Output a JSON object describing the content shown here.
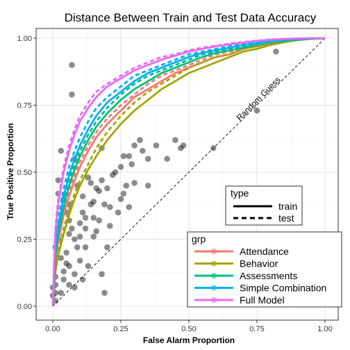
{
  "chart_data": {
    "type": "line",
    "title": "Distance Between Train and Test Data Accuracy",
    "xlabel": "False Alarm Proportion",
    "ylabel": "True Positive Proportion",
    "xlim": [
      0,
      1
    ],
    "ylim": [
      0,
      1
    ],
    "x_ticks": [
      "0.00",
      "0.25",
      "0.50",
      "0.75",
      "1.00"
    ],
    "y_ticks": [
      "0.00",
      "0.25",
      "0.50",
      "0.75",
      "1.00"
    ],
    "grid": true,
    "annotation": "Random Guess",
    "legend_type": {
      "title": "type",
      "entries": [
        {
          "label": "train",
          "dash": "solid"
        },
        {
          "label": "test",
          "dash": "dashed"
        }
      ]
    },
    "legend_grp": {
      "title": "grp",
      "entries": [
        {
          "label": "Attendance",
          "color": "#F8766D"
        },
        {
          "label": "Behavior",
          "color": "#A3A500"
        },
        {
          "label": "Assessments",
          "color": "#00BF7D"
        },
        {
          "label": "Simple Combination",
          "color": "#00B0F6"
        },
        {
          "label": "Full Model",
          "color": "#E76BF3"
        }
      ]
    },
    "series": [
      {
        "name": "Attendance",
        "type": "train",
        "color": "#F8766D",
        "x": [
          0,
          0.01,
          0.02,
          0.04,
          0.06,
          0.08,
          0.1,
          0.13,
          0.16,
          0.2,
          0.25,
          0.3,
          0.35,
          0.4,
          0.45,
          0.5,
          0.55,
          0.6,
          0.65,
          0.7,
          0.75,
          0.8,
          0.85,
          0.9,
          0.95,
          1.0
        ],
        "y": [
          0,
          0.17,
          0.24,
          0.34,
          0.41,
          0.47,
          0.52,
          0.58,
          0.63,
          0.68,
          0.73,
          0.78,
          0.81,
          0.84,
          0.87,
          0.89,
          0.91,
          0.93,
          0.94,
          0.96,
          0.97,
          0.98,
          0.99,
          0.995,
          0.998,
          1.0
        ]
      },
      {
        "name": "Attendance",
        "type": "test",
        "color": "#F8766D",
        "x": [
          0,
          0.01,
          0.02,
          0.04,
          0.06,
          0.08,
          0.1,
          0.13,
          0.16,
          0.2,
          0.25,
          0.3,
          0.35,
          0.4,
          0.45,
          0.5,
          0.55,
          0.6,
          0.65,
          0.7,
          0.75,
          0.8,
          0.85,
          0.9,
          0.95,
          1.0
        ],
        "y": [
          0,
          0.18,
          0.25,
          0.35,
          0.43,
          0.49,
          0.54,
          0.6,
          0.65,
          0.7,
          0.75,
          0.79,
          0.83,
          0.86,
          0.88,
          0.9,
          0.92,
          0.94,
          0.95,
          0.96,
          0.97,
          0.98,
          0.99,
          0.995,
          0.998,
          1.0
        ]
      },
      {
        "name": "Behavior",
        "type": "train",
        "color": "#A3A500",
        "x": [
          0,
          0.01,
          0.02,
          0.04,
          0.06,
          0.08,
          0.1,
          0.13,
          0.16,
          0.2,
          0.25,
          0.3,
          0.35,
          0.4,
          0.45,
          0.5,
          0.55,
          0.6,
          0.65,
          0.7,
          0.75,
          0.8,
          0.85,
          0.9,
          0.95,
          1.0
        ],
        "y": [
          0,
          0.13,
          0.19,
          0.27,
          0.34,
          0.4,
          0.45,
          0.51,
          0.56,
          0.62,
          0.68,
          0.73,
          0.77,
          0.81,
          0.84,
          0.87,
          0.89,
          0.91,
          0.93,
          0.95,
          0.96,
          0.975,
          0.985,
          0.993,
          0.998,
          1.0
        ]
      },
      {
        "name": "Behavior",
        "type": "test",
        "color": "#A3A500",
        "x": [
          0,
          0.01,
          0.02,
          0.04,
          0.06,
          0.08,
          0.1,
          0.13,
          0.16,
          0.2,
          0.25,
          0.3,
          0.35,
          0.4,
          0.45,
          0.5,
          0.55,
          0.6,
          0.65,
          0.7,
          0.75,
          0.8,
          0.85,
          0.9,
          0.95,
          1.0
        ],
        "y": [
          0,
          0.14,
          0.2,
          0.29,
          0.36,
          0.42,
          0.47,
          0.53,
          0.59,
          0.65,
          0.71,
          0.76,
          0.8,
          0.83,
          0.86,
          0.89,
          0.91,
          0.93,
          0.94,
          0.96,
          0.97,
          0.98,
          0.99,
          0.995,
          0.998,
          1.0
        ]
      },
      {
        "name": "Assessments",
        "type": "train",
        "color": "#00BF7D",
        "x": [
          0,
          0.01,
          0.02,
          0.04,
          0.06,
          0.08,
          0.1,
          0.13,
          0.16,
          0.2,
          0.25,
          0.3,
          0.35,
          0.4,
          0.45,
          0.5,
          0.55,
          0.6,
          0.65,
          0.7,
          0.75,
          0.8,
          0.85,
          0.9,
          0.95,
          1.0
        ],
        "y": [
          0,
          0.19,
          0.27,
          0.37,
          0.45,
          0.51,
          0.56,
          0.62,
          0.67,
          0.72,
          0.77,
          0.81,
          0.84,
          0.87,
          0.89,
          0.91,
          0.93,
          0.945,
          0.955,
          0.965,
          0.975,
          0.985,
          0.99,
          0.995,
          0.998,
          1.0
        ]
      },
      {
        "name": "Assessments",
        "type": "test",
        "color": "#00BF7D",
        "x": [
          0,
          0.01,
          0.02,
          0.04,
          0.06,
          0.08,
          0.1,
          0.13,
          0.16,
          0.2,
          0.25,
          0.3,
          0.35,
          0.4,
          0.45,
          0.5,
          0.55,
          0.6,
          0.65,
          0.7,
          0.75,
          0.8,
          0.85,
          0.9,
          0.95,
          1.0
        ],
        "y": [
          0,
          0.2,
          0.28,
          0.39,
          0.47,
          0.53,
          0.58,
          0.64,
          0.69,
          0.74,
          0.79,
          0.83,
          0.86,
          0.88,
          0.9,
          0.92,
          0.94,
          0.95,
          0.96,
          0.97,
          0.98,
          0.985,
          0.99,
          0.995,
          0.998,
          1.0
        ]
      },
      {
        "name": "Simple Combination",
        "type": "train",
        "color": "#00B0F6",
        "x": [
          0,
          0.01,
          0.02,
          0.04,
          0.06,
          0.08,
          0.1,
          0.13,
          0.16,
          0.2,
          0.25,
          0.3,
          0.35,
          0.4,
          0.45,
          0.5,
          0.55,
          0.6,
          0.65,
          0.7,
          0.75,
          0.8,
          0.85,
          0.9,
          0.95,
          1.0
        ],
        "y": [
          0,
          0.22,
          0.3,
          0.41,
          0.49,
          0.55,
          0.6,
          0.66,
          0.71,
          0.76,
          0.8,
          0.84,
          0.87,
          0.89,
          0.91,
          0.93,
          0.945,
          0.955,
          0.965,
          0.975,
          0.982,
          0.988,
          0.993,
          0.996,
          0.999,
          1.0
        ]
      },
      {
        "name": "Simple Combination",
        "type": "test",
        "color": "#00B0F6",
        "x": [
          0,
          0.01,
          0.02,
          0.04,
          0.06,
          0.08,
          0.1,
          0.13,
          0.16,
          0.2,
          0.25,
          0.3,
          0.35,
          0.4,
          0.45,
          0.5,
          0.55,
          0.6,
          0.65,
          0.7,
          0.75,
          0.8,
          0.85,
          0.9,
          0.95,
          1.0
        ],
        "y": [
          0,
          0.24,
          0.33,
          0.44,
          0.52,
          0.58,
          0.63,
          0.69,
          0.74,
          0.78,
          0.82,
          0.86,
          0.88,
          0.9,
          0.92,
          0.94,
          0.95,
          0.96,
          0.97,
          0.978,
          0.985,
          0.99,
          0.994,
          0.997,
          0.999,
          1.0
        ]
      },
      {
        "name": "Full Model",
        "type": "train",
        "color": "#E76BF3",
        "x": [
          0,
          0.01,
          0.02,
          0.04,
          0.06,
          0.08,
          0.1,
          0.13,
          0.16,
          0.2,
          0.25,
          0.3,
          0.35,
          0.4,
          0.45,
          0.5,
          0.55,
          0.6,
          0.65,
          0.7,
          0.75,
          0.8,
          0.85,
          0.9,
          0.95,
          1.0
        ],
        "y": [
          0,
          0.28,
          0.38,
          0.5,
          0.58,
          0.64,
          0.69,
          0.74,
          0.78,
          0.82,
          0.85,
          0.88,
          0.9,
          0.92,
          0.935,
          0.95,
          0.96,
          0.97,
          0.977,
          0.984,
          0.99,
          0.994,
          0.997,
          0.999,
          1.0,
          1.0
        ]
      },
      {
        "name": "Full Model",
        "type": "test",
        "color": "#E76BF3",
        "x": [
          0,
          0.01,
          0.02,
          0.04,
          0.06,
          0.08,
          0.1,
          0.13,
          0.16,
          0.2,
          0.25,
          0.3,
          0.35,
          0.4,
          0.45,
          0.5,
          0.55,
          0.6,
          0.65,
          0.7,
          0.75,
          0.8,
          0.85,
          0.9,
          0.95,
          1.0
        ],
        "y": [
          0,
          0.3,
          0.4,
          0.52,
          0.6,
          0.66,
          0.71,
          0.76,
          0.8,
          0.83,
          0.86,
          0.89,
          0.91,
          0.93,
          0.94,
          0.955,
          0.965,
          0.972,
          0.98,
          0.986,
          0.991,
          0.995,
          0.997,
          0.999,
          1.0,
          1.0
        ]
      }
    ],
    "points": [
      [
        0.0,
        0.07
      ],
      [
        0.0,
        0.04
      ],
      [
        0.01,
        0.02
      ],
      [
        0.01,
        0.05
      ],
      [
        0.01,
        0.08
      ],
      [
        0.01,
        0.11
      ],
      [
        0.01,
        0.22
      ],
      [
        0.02,
        0.25
      ],
      [
        0.02,
        0.28
      ],
      [
        0.02,
        0.42
      ],
      [
        0.02,
        0.47
      ],
      [
        0.03,
        0.58
      ],
      [
        0.03,
        0.18
      ],
      [
        0.03,
        0.05
      ],
      [
        0.04,
        0.1
      ],
      [
        0.04,
        0.13
      ],
      [
        0.05,
        0.16
      ],
      [
        0.05,
        0.2
      ],
      [
        0.06,
        0.08
      ],
      [
        0.06,
        0.15
      ],
      [
        0.06,
        0.27
      ],
      [
        0.06,
        0.32
      ],
      [
        0.06,
        0.38
      ],
      [
        0.07,
        0.9
      ],
      [
        0.07,
        0.79
      ],
      [
        0.08,
        0.07
      ],
      [
        0.08,
        0.25
      ],
      [
        0.08,
        0.12
      ],
      [
        0.09,
        0.22
      ],
      [
        0.09,
        0.45
      ],
      [
        0.1,
        0.17
      ],
      [
        0.1,
        0.26
      ],
      [
        0.1,
        0.31
      ],
      [
        0.11,
        0.1
      ],
      [
        0.11,
        0.35
      ],
      [
        0.11,
        0.41
      ],
      [
        0.12,
        0.22
      ],
      [
        0.12,
        0.29
      ],
      [
        0.13,
        0.15
      ],
      [
        0.13,
        0.48
      ],
      [
        0.14,
        0.38
      ],
      [
        0.14,
        0.46
      ],
      [
        0.15,
        0.26
      ],
      [
        0.15,
        0.33
      ],
      [
        0.15,
        0.39
      ],
      [
        0.16,
        0.28
      ],
      [
        0.17,
        0.32
      ],
      [
        0.17,
        0.43
      ],
      [
        0.18,
        0.12
      ],
      [
        0.18,
        0.47
      ],
      [
        0.18,
        0.59
      ],
      [
        0.19,
        0.38
      ],
      [
        0.19,
        0.05
      ],
      [
        0.2,
        0.22
      ],
      [
        0.2,
        0.44
      ],
      [
        0.21,
        0.37
      ],
      [
        0.22,
        0.49
      ],
      [
        0.23,
        0.5
      ],
      [
        0.24,
        0.35
      ],
      [
        0.25,
        0.4
      ],
      [
        0.25,
        0.52
      ],
      [
        0.26,
        0.56
      ],
      [
        0.27,
        0.45
      ],
      [
        0.28,
        0.37
      ],
      [
        0.28,
        0.56
      ],
      [
        0.29,
        0.53
      ],
      [
        0.3,
        0.6
      ],
      [
        0.3,
        0.46
      ],
      [
        0.32,
        0.62
      ],
      [
        0.33,
        0.58
      ],
      [
        0.35,
        0.45
      ],
      [
        0.38,
        0.6
      ],
      [
        0.42,
        0.55
      ],
      [
        0.45,
        0.62
      ],
      [
        0.47,
        0.59
      ],
      [
        0.48,
        0.6
      ],
      [
        0.35,
        0.55
      ],
      [
        0.59,
        0.59
      ],
      [
        0.75,
        0.73
      ],
      [
        0.82,
        0.95
      ],
      [
        0.05,
        0.35
      ],
      [
        0.04,
        0.4
      ],
      [
        0.08,
        0.55
      ],
      [
        0.16,
        0.44
      ],
      [
        0.12,
        0.33
      ],
      [
        0.07,
        0.29
      ],
      [
        0.21,
        0.3
      ],
      [
        0.26,
        0.42
      ]
    ]
  }
}
